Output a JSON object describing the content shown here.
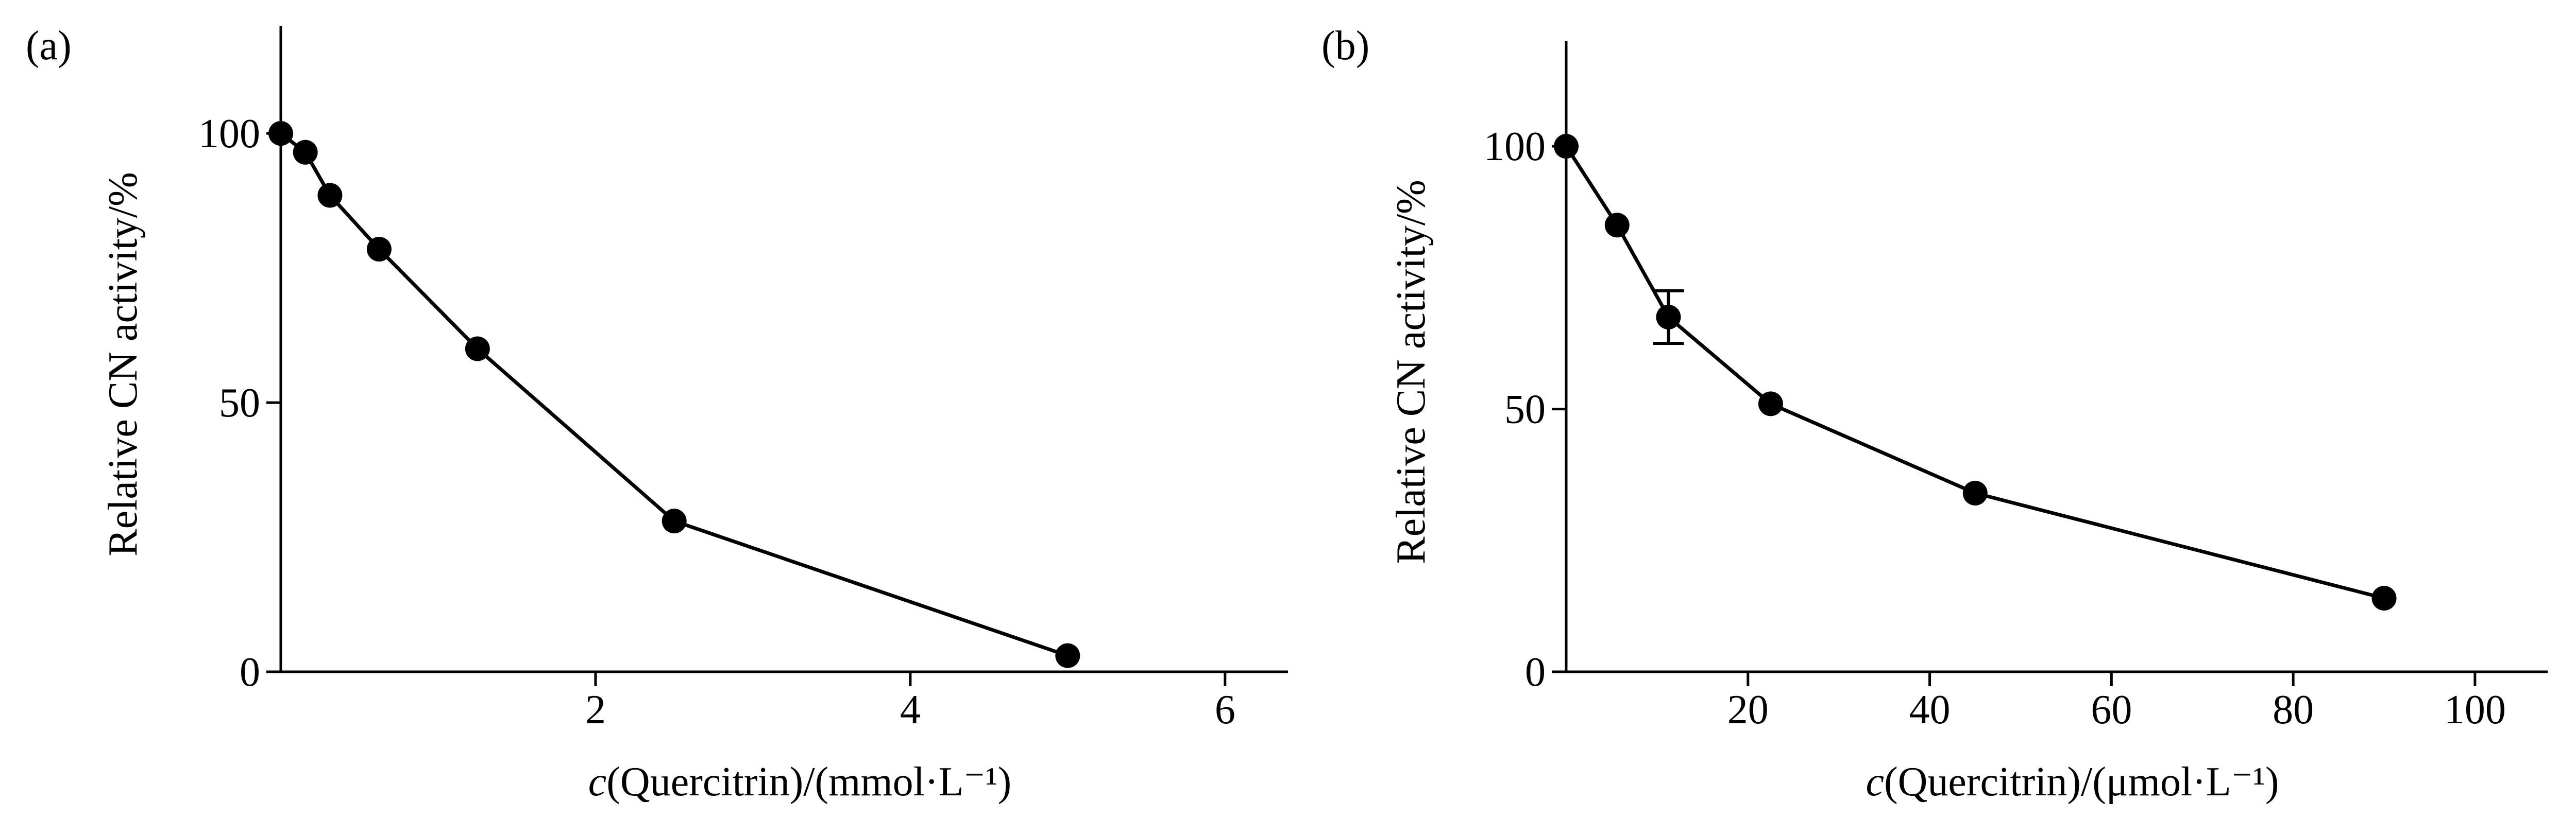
{
  "chart_data": [
    {
      "panel_label": "(a)",
      "type": "line",
      "xlabel_italic": "c",
      "xlabel_rest": "(Quercitrin)/(mmol·L⁻¹)",
      "ylabel": "Relative CN activity/%",
      "xlim": [
        0,
        6.4
      ],
      "ylim": [
        0,
        120
      ],
      "xticks": [
        2,
        4,
        6
      ],
      "yticks": [
        0,
        50,
        100
      ],
      "color": "#000000",
      "marker": "circle",
      "x": [
        0,
        0.156,
        0.3125,
        0.625,
        1.25,
        2.5,
        5.0
      ],
      "y": [
        100,
        96.5,
        88.5,
        78.5,
        60,
        28,
        3
      ],
      "error": [
        0,
        0,
        0,
        0,
        0,
        0,
        0
      ]
    },
    {
      "panel_label": "(b)",
      "type": "line",
      "xlabel_italic": "c",
      "xlabel_rest": "(Quercitrin)/(μmol·L⁻¹)",
      "ylabel": "Relative CN activity/%",
      "xlim": [
        0,
        108
      ],
      "ylim": [
        0,
        120
      ],
      "xticks": [
        20,
        40,
        60,
        80,
        100
      ],
      "yticks": [
        0,
        50,
        100
      ],
      "color": "#000000",
      "marker": "circle",
      "x": [
        0,
        5.6,
        11.25,
        22.5,
        45,
        90
      ],
      "y": [
        100,
        85,
        67.5,
        51,
        34,
        14
      ],
      "error": [
        0,
        0,
        5,
        0,
        0,
        0
      ]
    }
  ]
}
